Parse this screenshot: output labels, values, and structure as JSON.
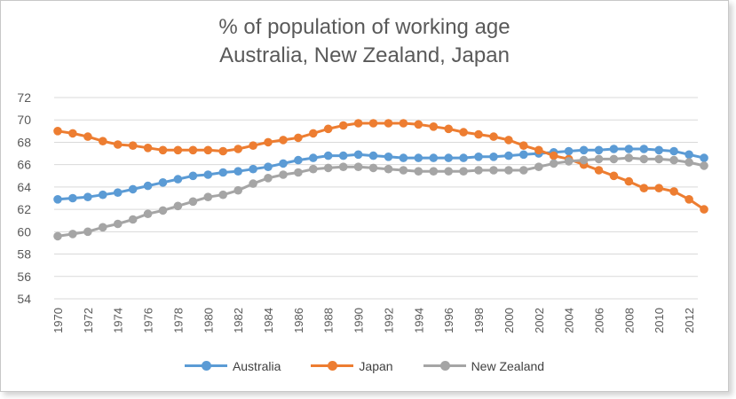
{
  "chart_data": {
    "type": "line",
    "title": [
      "% of population of working age",
      "Australia, New Zealand, Japan"
    ],
    "xlabel": "",
    "ylabel": "",
    "ylim": [
      54,
      72
    ],
    "yticks": [
      54,
      56,
      58,
      60,
      62,
      64,
      66,
      68,
      70,
      72
    ],
    "x": [
      1970,
      1971,
      1972,
      1973,
      1974,
      1975,
      1976,
      1977,
      1978,
      1979,
      1980,
      1981,
      1982,
      1983,
      1984,
      1985,
      1986,
      1987,
      1988,
      1989,
      1990,
      1991,
      1992,
      1993,
      1994,
      1995,
      1996,
      1997,
      1998,
      1999,
      2000,
      2001,
      2002,
      2003,
      2004,
      2005,
      2006,
      2007,
      2008,
      2009,
      2010,
      2011,
      2012,
      2013
    ],
    "xtick_labels": [
      "1970",
      "1972",
      "1974",
      "1976",
      "1978",
      "1980",
      "1982",
      "1984",
      "1986",
      "1988",
      "1990",
      "1992",
      "1994",
      "1996",
      "1998",
      "2000",
      "2002",
      "2004",
      "2006",
      "2008",
      "2010",
      "2012"
    ],
    "grid": true,
    "legend_position": "bottom",
    "series": [
      {
        "name": "Australia",
        "color": "#5B9BD5",
        "values": [
          62.9,
          63.0,
          63.1,
          63.3,
          63.5,
          63.8,
          64.1,
          64.4,
          64.7,
          65.0,
          65.1,
          65.3,
          65.4,
          65.6,
          65.8,
          66.1,
          66.4,
          66.6,
          66.8,
          66.8,
          66.9,
          66.8,
          66.7,
          66.6,
          66.6,
          66.6,
          66.6,
          66.6,
          66.7,
          66.7,
          66.8,
          66.9,
          67.0,
          67.1,
          67.2,
          67.3,
          67.3,
          67.4,
          67.4,
          67.4,
          67.3,
          67.2,
          66.9,
          66.6
        ]
      },
      {
        "name": "Japan",
        "color": "#ED7D31",
        "values": [
          69.0,
          68.8,
          68.5,
          68.1,
          67.8,
          67.7,
          67.5,
          67.3,
          67.3,
          67.3,
          67.3,
          67.2,
          67.4,
          67.7,
          68.0,
          68.2,
          68.4,
          68.8,
          69.2,
          69.5,
          69.7,
          69.7,
          69.7,
          69.7,
          69.6,
          69.4,
          69.2,
          68.9,
          68.7,
          68.5,
          68.2,
          67.7,
          67.3,
          66.8,
          66.5,
          66.0,
          65.5,
          65.0,
          64.5,
          63.9,
          63.9,
          63.6,
          62.9,
          62.0
        ]
      },
      {
        "name": "New Zealand",
        "color": "#A5A5A5",
        "values": [
          59.6,
          59.8,
          60.0,
          60.4,
          60.7,
          61.1,
          61.6,
          61.9,
          62.3,
          62.7,
          63.1,
          63.3,
          63.7,
          64.3,
          64.8,
          65.1,
          65.3,
          65.6,
          65.7,
          65.8,
          65.8,
          65.7,
          65.6,
          65.5,
          65.4,
          65.4,
          65.4,
          65.4,
          65.5,
          65.5,
          65.5,
          65.5,
          65.8,
          66.1,
          66.3,
          66.4,
          66.5,
          66.5,
          66.6,
          66.5,
          66.5,
          66.4,
          66.2,
          65.9
        ]
      }
    ]
  }
}
